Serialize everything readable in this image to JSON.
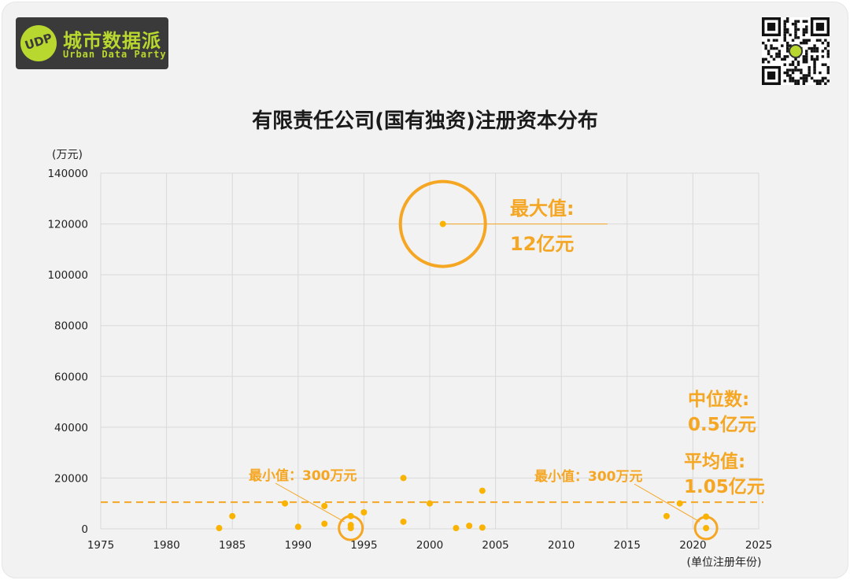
{
  "header": {
    "logo_name": "城市数据派",
    "logo_sub": "Urban Data Party",
    "logo_badge": "UDP"
  },
  "colors": {
    "accent": "#f5a623",
    "point": "#f9b300",
    "logo_green": "#b8d82f",
    "grid": "#d9d9d9"
  },
  "chart_data": {
    "type": "scatter",
    "title": "有限责任公司(国有独资)注册资本分布",
    "ylabel": "(万元)",
    "xlabel": "(单位注册年份)",
    "xlim": [
      1975,
      2025
    ],
    "ylim": [
      0,
      140000
    ],
    "x_ticks": [
      "1975",
      "1980",
      "1985",
      "1990",
      "1995",
      "2000",
      "2005",
      "2010",
      "2015",
      "2020",
      "2025"
    ],
    "y_ticks": [
      "0",
      "20000",
      "40000",
      "60000",
      "80000",
      "100000",
      "120000",
      "140000"
    ],
    "grid": true,
    "points": [
      {
        "x": 1984,
        "y": 300
      },
      {
        "x": 1985,
        "y": 5000
      },
      {
        "x": 1989,
        "y": 10000
      },
      {
        "x": 1990,
        "y": 800
      },
      {
        "x": 1992,
        "y": 9000
      },
      {
        "x": 1992,
        "y": 2000
      },
      {
        "x": 1994,
        "y": 300
      },
      {
        "x": 1994,
        "y": 1500
      },
      {
        "x": 1994,
        "y": 5000
      },
      {
        "x": 1995,
        "y": 6500
      },
      {
        "x": 1998,
        "y": 20000
      },
      {
        "x": 1998,
        "y": 2800
      },
      {
        "x": 2000,
        "y": 10000
      },
      {
        "x": 2001,
        "y": 120000
      },
      {
        "x": 2002,
        "y": 300
      },
      {
        "x": 2003,
        "y": 1200
      },
      {
        "x": 2004,
        "y": 15000
      },
      {
        "x": 2004,
        "y": 500
      },
      {
        "x": 2018,
        "y": 5000
      },
      {
        "x": 2019,
        "y": 10000
      },
      {
        "x": 2021,
        "y": 300
      },
      {
        "x": 2021,
        "y": 4800
      }
    ],
    "mean_line": {
      "y": 10500
    },
    "annotations": {
      "max_label": "最大值:",
      "max_value": "12亿元",
      "median_label": "中位数:",
      "median_value": "0.5亿元",
      "mean_label": "平均值:",
      "mean_value": "1.05亿元",
      "min_label_left": "最小值：300万元",
      "min_label_right": "最小值：300万元"
    },
    "highlights": {
      "max": {
        "x": 2001,
        "y": 120000
      },
      "min_left": {
        "x": 1994,
        "y": 300
      },
      "min_right": {
        "x": 2021,
        "y": 300
      }
    }
  }
}
